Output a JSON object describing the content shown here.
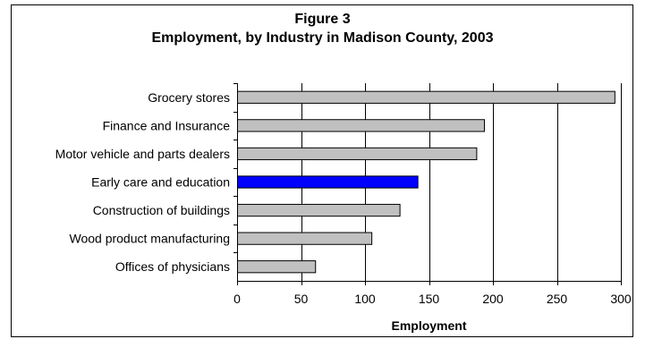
{
  "figure_label": "Figure 3",
  "chart_data": {
    "type": "bar",
    "orientation": "horizontal",
    "title": "Employment, by Industry in Madison County, 2003",
    "xlabel": "Employment",
    "ylabel": "",
    "categories": [
      "Grocery stores",
      "Finance and Insurance",
      "Motor vehicle and parts dealers",
      "Early care and education",
      "Construction of buildings",
      "Wood product manufacturing",
      "Offices of physicians"
    ],
    "values": [
      295,
      193,
      187,
      141,
      127,
      105,
      61
    ],
    "highlight_category": "Early care and education",
    "xlim": [
      0,
      300
    ],
    "xticks": [
      0,
      50,
      100,
      150,
      200,
      250,
      300
    ],
    "grid": true,
    "colors": {
      "bar": "#c0c0c0",
      "highlight": "#0000ff",
      "outline": "#000000",
      "grid": "#000000"
    }
  }
}
